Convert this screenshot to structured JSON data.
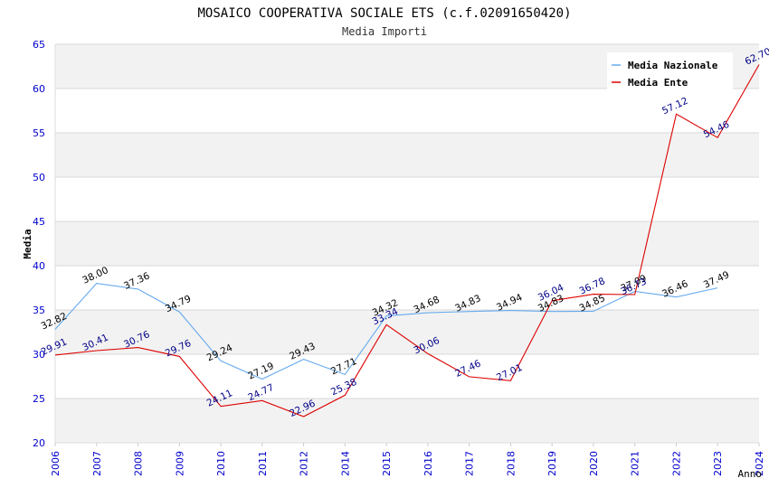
{
  "chart_data": {
    "type": "line",
    "title": "MOSAICO COOPERATIVA SOCIALE ETS (c.f.02091650420)",
    "subtitle": "Media Importi",
    "xlabel": "Anno",
    "ylabel": "Media",
    "ylim": [
      20,
      65
    ],
    "yticks": [
      "20",
      "25",
      "30",
      "35",
      "40",
      "45",
      "50",
      "55",
      "60",
      "65"
    ],
    "grid": "horizontal bands",
    "legend_position": "top-right",
    "categories": [
      "2006",
      "2007",
      "2008",
      "2009",
      "2010",
      "2011",
      "2012",
      "2014",
      "2015",
      "2016",
      "2017",
      "2018",
      "2019",
      "2020",
      "2021",
      "2022",
      "2023",
      "2024"
    ],
    "series": [
      {
        "name": "Media Nazionale",
        "color": "#66aaee",
        "label_color": "#000000",
        "values": [
          32.82,
          38.0,
          37.36,
          34.79,
          29.24,
          27.19,
          29.43,
          27.71,
          34.32,
          34.68,
          34.83,
          34.94,
          34.83,
          34.85,
          37.09,
          36.46,
          37.49,
          null
        ],
        "labels": [
          "32.82",
          "38.00",
          "37.36",
          "34.79",
          "29.24",
          "27.19",
          "29.43",
          "27.71",
          "34.32",
          "34.68",
          "34.83",
          "34.94",
          "34.83",
          "34.85",
          "37.09",
          "36.46",
          "37.49",
          null
        ]
      },
      {
        "name": "Media Ente",
        "color": "#dd0000",
        "label_color": "#000088",
        "values": [
          29.91,
          30.41,
          30.76,
          29.76,
          24.11,
          24.77,
          22.96,
          25.38,
          33.34,
          30.06,
          27.46,
          27.01,
          36.04,
          36.78,
          36.73,
          57.12,
          54.46,
          62.7
        ],
        "labels": [
          "29.91",
          "30.41",
          "30.76",
          "29.76",
          "24.11",
          "24.77",
          "22.96",
          "25.38",
          "33.34",
          "30.06",
          "27.46",
          "27.01",
          "36.04",
          "36.78",
          "36.73",
          "57.12",
          "54.46",
          "62.70"
        ]
      }
    ],
    "colors": {
      "axis_text": "#0000cc",
      "band": "#f2f2f2",
      "grid": "#d8d8d8"
    }
  }
}
